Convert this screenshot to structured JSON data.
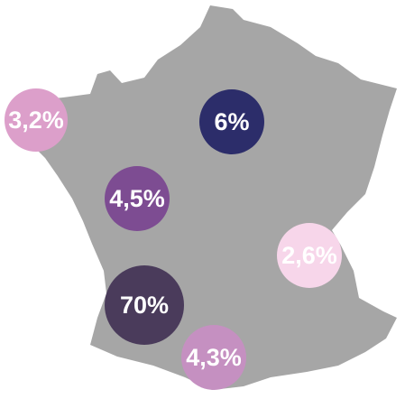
{
  "markers": [
    {
      "label": "3,2%",
      "color": "#dc9fca"
    },
    {
      "label": "6%",
      "color": "#2c2d6a"
    },
    {
      "label": "4,5%",
      "color": "#7d4c92"
    },
    {
      "label": "2,6%",
      "color": "#f7d6ea"
    },
    {
      "label": "70%",
      "color": "#4a3b5b"
    },
    {
      "label": "4,3%",
      "color": "#c590c1"
    }
  ]
}
